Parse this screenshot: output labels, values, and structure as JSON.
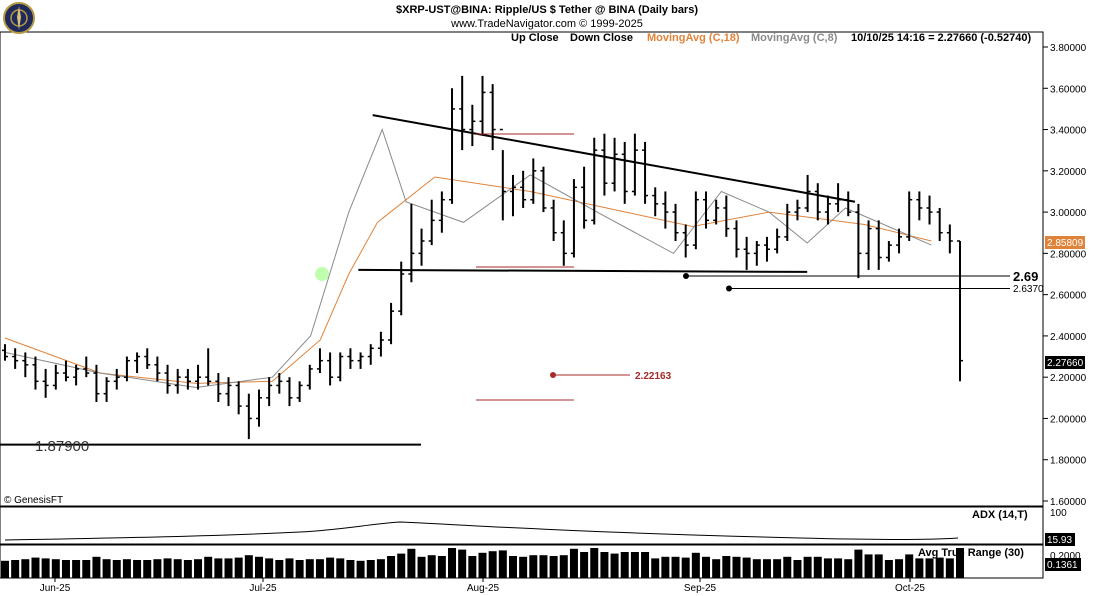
{
  "header": {
    "title": "$XRP-UST@BINA:  Ripple/US $ Tether @ BINA  (Daily bars)",
    "copyright": "www.TradeNavigator.com © 1999-2025",
    "legend": {
      "up_close": "Up Close",
      "down_close": "Down Close",
      "ma18": "MovingAvg (C,18)",
      "ma8": "MovingAvg (C,8)",
      "quote": "10/10/25 14:16 = 2.27660 (-0.52740)"
    },
    "watermark": "© GenesisFT"
  },
  "colors": {
    "bars": "#000000",
    "ma18": "#e0833a",
    "ma8": "#8a8a8a",
    "target_line": "#a52a2a",
    "ma18_badge": "#e0833a",
    "price_badge": "#000000"
  },
  "price_labels": {
    "ma18_value": "2.85809",
    "last_price": "2.27660",
    "support_a": "2.69",
    "support_b": "2.6370",
    "target": "2.22163",
    "low": "1.87900"
  },
  "indicators": {
    "adx": {
      "label": "ADX (14,T)",
      "value": "15.93",
      "tick": "100"
    },
    "atr": {
      "label": "Avg True Range (30)",
      "value": "0.1361",
      "tick": "0.2000"
    }
  },
  "chart_data": {
    "type": "ohlc",
    "y_axis": {
      "min": 1.6,
      "max": 3.8,
      "ticks": [
        "3.80000",
        "3.60000",
        "3.40000",
        "3.20000",
        "3.00000",
        "2.80000",
        "2.60000",
        "2.40000",
        "2.20000",
        "2.00000",
        "1.80000",
        "1.60000"
      ]
    },
    "x_ticks": [
      "Jun-25",
      "Jul-25",
      "Aug-25",
      "Sep-25",
      "Oct-25"
    ],
    "series": [
      {
        "name": "MovingAvg (C,18)",
        "y_at_x": [
          [
            0.0,
            2.39
          ],
          [
            0.1,
            2.22
          ],
          [
            0.2,
            2.17
          ],
          [
            0.28,
            2.18
          ],
          [
            0.33,
            2.38
          ],
          [
            0.36,
            2.7
          ],
          [
            0.39,
            2.95
          ],
          [
            0.45,
            3.17
          ],
          [
            0.55,
            3.1
          ],
          [
            0.65,
            3.0
          ],
          [
            0.72,
            2.93
          ],
          [
            0.8,
            3.0
          ],
          [
            0.9,
            2.94
          ],
          [
            0.97,
            2.86
          ]
        ]
      },
      {
        "name": "MovingAvg (C,8)",
        "y_at_x": [
          [
            0.0,
            2.32
          ],
          [
            0.1,
            2.22
          ],
          [
            0.2,
            2.15
          ],
          [
            0.28,
            2.2
          ],
          [
            0.32,
            2.4
          ],
          [
            0.36,
            3.0
          ],
          [
            0.395,
            3.4
          ],
          [
            0.42,
            3.05
          ],
          [
            0.48,
            2.95
          ],
          [
            0.55,
            3.18
          ],
          [
            0.62,
            3.0
          ],
          [
            0.7,
            2.8
          ],
          [
            0.75,
            3.1
          ],
          [
            0.8,
            3.0
          ],
          [
            0.84,
            2.85
          ],
          [
            0.88,
            3.02
          ],
          [
            0.94,
            2.9
          ],
          [
            0.97,
            2.84
          ]
        ]
      }
    ],
    "bars": [
      [
        2.33,
        2.36,
        2.28,
        2.3
      ],
      [
        2.3,
        2.34,
        2.24,
        2.28
      ],
      [
        2.28,
        2.32,
        2.2,
        2.26
      ],
      [
        2.26,
        2.3,
        2.14,
        2.18
      ],
      [
        2.18,
        2.24,
        2.1,
        2.16
      ],
      [
        2.16,
        2.26,
        2.14,
        2.22
      ],
      [
        2.22,
        2.28,
        2.18,
        2.2
      ],
      [
        2.2,
        2.26,
        2.16,
        2.24
      ],
      [
        2.24,
        2.3,
        2.2,
        2.22
      ],
      [
        2.22,
        2.26,
        2.08,
        2.12
      ],
      [
        2.12,
        2.2,
        2.08,
        2.18
      ],
      [
        2.18,
        2.24,
        2.14,
        2.2
      ],
      [
        2.2,
        2.3,
        2.18,
        2.28
      ],
      [
        2.28,
        2.32,
        2.22,
        2.3
      ],
      [
        2.3,
        2.34,
        2.24,
        2.26
      ],
      [
        2.26,
        2.3,
        2.18,
        2.22
      ],
      [
        2.22,
        2.26,
        2.12,
        2.16
      ],
      [
        2.16,
        2.24,
        2.12,
        2.2
      ],
      [
        2.2,
        2.24,
        2.14,
        2.18
      ],
      [
        2.18,
        2.26,
        2.14,
        2.2
      ],
      [
        2.2,
        2.34,
        2.16,
        2.18
      ],
      [
        2.18,
        2.22,
        2.08,
        2.12
      ],
      [
        2.12,
        2.2,
        2.06,
        2.16
      ],
      [
        2.16,
        2.18,
        2.02,
        2.06
      ],
      [
        2.06,
        2.12,
        1.9,
        2.0
      ],
      [
        2.0,
        2.14,
        1.96,
        2.1
      ],
      [
        2.1,
        2.2,
        2.06,
        2.16
      ],
      [
        2.16,
        2.22,
        2.12,
        2.18
      ],
      [
        2.18,
        2.2,
        2.06,
        2.1
      ],
      [
        2.1,
        2.18,
        2.08,
        2.16
      ],
      [
        2.16,
        2.26,
        2.14,
        2.24
      ],
      [
        2.24,
        2.34,
        2.22,
        2.28
      ],
      [
        2.28,
        2.32,
        2.16,
        2.2
      ],
      [
        2.2,
        2.32,
        2.18,
        2.3
      ],
      [
        2.3,
        2.34,
        2.24,
        2.28
      ],
      [
        2.28,
        2.32,
        2.24,
        2.3
      ],
      [
        2.3,
        2.36,
        2.26,
        2.34
      ],
      [
        2.34,
        2.42,
        2.3,
        2.38
      ],
      [
        2.38,
        2.56,
        2.36,
        2.52
      ],
      [
        2.52,
        2.76,
        2.5,
        2.7
      ],
      [
        2.7,
        3.04,
        2.66,
        2.8
      ],
      [
        2.8,
        2.92,
        2.74,
        2.86
      ],
      [
        2.86,
        3.06,
        2.84,
        2.96
      ],
      [
        2.96,
        3.1,
        2.9,
        3.06
      ],
      [
        3.06,
        3.6,
        3.04,
        3.5
      ],
      [
        3.5,
        3.66,
        3.3,
        3.4
      ],
      [
        3.4,
        3.52,
        3.32,
        3.44
      ],
      [
        3.44,
        3.66,
        3.38,
        3.58
      ],
      [
        3.58,
        3.62,
        3.3,
        3.4
      ],
      [
        3.4,
        3.3,
        2.96,
        3.1
      ],
      [
        3.1,
        3.18,
        2.98,
        3.12
      ],
      [
        3.12,
        3.2,
        3.02,
        3.06
      ],
      [
        3.06,
        3.26,
        3.04,
        3.2
      ],
      [
        3.2,
        3.22,
        3.0,
        3.02
      ],
      [
        3.02,
        3.06,
        2.86,
        2.9
      ],
      [
        2.9,
        2.96,
        2.74,
        2.8
      ],
      [
        2.8,
        3.16,
        2.78,
        3.12
      ],
      [
        3.12,
        3.22,
        2.92,
        2.96
      ],
      [
        2.96,
        3.36,
        2.94,
        3.3
      ],
      [
        3.3,
        3.38,
        3.08,
        3.14
      ],
      [
        3.14,
        3.36,
        3.1,
        3.28
      ],
      [
        3.28,
        3.34,
        3.04,
        3.1
      ],
      [
        3.1,
        3.38,
        3.08,
        3.3
      ],
      [
        3.3,
        3.34,
        3.04,
        3.08
      ],
      [
        3.08,
        3.12,
        2.98,
        3.04
      ],
      [
        3.04,
        3.1,
        2.92,
        3.0
      ],
      [
        3.0,
        3.04,
        2.86,
        2.9
      ],
      [
        2.9,
        2.94,
        2.78,
        2.84
      ],
      [
        2.84,
        3.1,
        2.82,
        3.06
      ],
      [
        3.06,
        3.1,
        2.92,
        2.96
      ],
      [
        2.96,
        3.06,
        2.94,
        3.02
      ],
      [
        3.02,
        3.08,
        2.88,
        2.92
      ],
      [
        2.92,
        2.96,
        2.78,
        2.82
      ],
      [
        2.82,
        2.88,
        2.72,
        2.8
      ],
      [
        2.8,
        2.86,
        2.74,
        2.84
      ],
      [
        2.84,
        2.88,
        2.76,
        2.82
      ],
      [
        2.82,
        2.92,
        2.8,
        2.88
      ],
      [
        2.88,
        3.04,
        2.86,
        3.0
      ],
      [
        3.0,
        3.06,
        2.96,
        3.02
      ],
      [
        3.02,
        3.18,
        3.0,
        3.1
      ],
      [
        3.1,
        3.14,
        2.96,
        3.0
      ],
      [
        3.0,
        3.08,
        2.94,
        3.04
      ],
      [
        3.04,
        3.14,
        3.0,
        3.06
      ],
      [
        3.06,
        3.1,
        2.98,
        3.0
      ],
      [
        3.0,
        3.04,
        2.68,
        2.8
      ],
      [
        2.8,
        2.96,
        2.72,
        2.92
      ],
      [
        2.92,
        2.96,
        2.72,
        2.78
      ],
      [
        2.78,
        2.86,
        2.76,
        2.84
      ],
      [
        2.84,
        2.92,
        2.8,
        2.88
      ],
      [
        2.88,
        3.1,
        2.86,
        3.06
      ],
      [
        3.06,
        3.1,
        2.96,
        3.02
      ],
      [
        3.02,
        3.08,
        2.94,
        3.0
      ],
      [
        3.0,
        3.02,
        2.86,
        2.9
      ],
      [
        2.9,
        2.94,
        2.8,
        2.86
      ],
      [
        2.86,
        2.86,
        2.18,
        2.28
      ]
    ],
    "trendlines": [
      {
        "label": "resistance",
        "from": [
          0.385,
          3.47
        ],
        "to": [
          0.89,
          3.05
        ]
      },
      {
        "label": "support",
        "from": [
          0.37,
          2.72
        ],
        "to": [
          0.84,
          2.71
        ]
      }
    ]
  }
}
